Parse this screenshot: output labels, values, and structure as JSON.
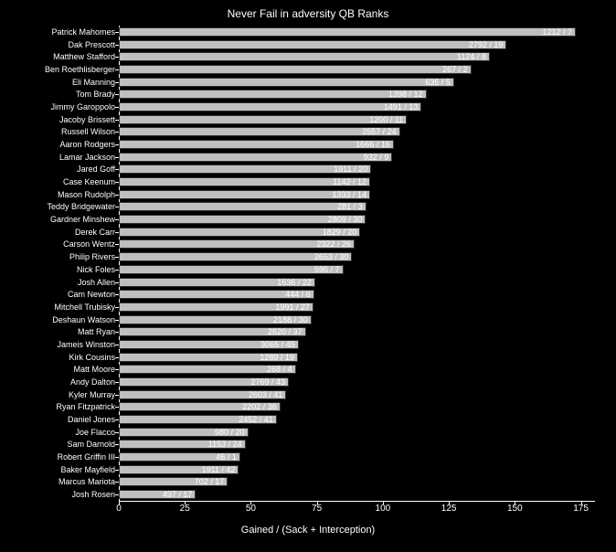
{
  "chart": {
    "type": "bar-horizontal",
    "title": "Never Fail in adversity QB Ranks",
    "title_fontsize": 12,
    "xlabel": "Gained / (Sack + Interception)",
    "label_fontsize": 11,
    "background_color": "#000000",
    "bar_color": "#bfbfbf",
    "bar_edge_color": "#303030",
    "text_color": "#ffffff",
    "tick_fontsize": 9,
    "xlim": [
      0,
      180
    ],
    "xtick_step": 25,
    "xticks": [
      0,
      25,
      50,
      75,
      100,
      125,
      150,
      175
    ],
    "players": [
      {
        "name": "Patrick Mahomes",
        "value": 173.1,
        "label": "1212 / 7"
      },
      {
        "name": "Dak Prescott",
        "value": 146.9,
        "label": "2792 / 19"
      },
      {
        "name": "Matthew Stafford",
        "value": 140.5,
        "label": "1124 / 8"
      },
      {
        "name": "Ben Roethlisberger",
        "value": 133.5,
        "label": "267 / 2"
      },
      {
        "name": "Eli Manning",
        "value": 127.0,
        "label": "635 / 5"
      },
      {
        "name": "Tom Brady",
        "value": 116.5,
        "label": "1398 / 12"
      },
      {
        "name": "Jimmy Garoppolo",
        "value": 114.7,
        "label": "1491 / 13"
      },
      {
        "name": "Jacoby Brissett",
        "value": 109.1,
        "label": "1200 / 11"
      },
      {
        "name": "Russell Wilson",
        "value": 106.5,
        "label": "2557 / 24"
      },
      {
        "name": "Aaron Rodgers",
        "value": 104.1,
        "label": "1666 / 16"
      },
      {
        "name": "Lamar Jackson",
        "value": 103.6,
        "label": "932 / 9"
      },
      {
        "name": "Jared Goff",
        "value": 95.6,
        "label": "1911 / 20"
      },
      {
        "name": "Case Keenum",
        "value": 95.2,
        "label": "1142 / 12"
      },
      {
        "name": "Mason Rudolph",
        "value": 95.2,
        "label": "1333 / 14"
      },
      {
        "name": "Teddy Bridgewater",
        "value": 93.7,
        "label": "281 / 3"
      },
      {
        "name": "Gardner Minshew",
        "value": 93.6,
        "label": "2809 / 30"
      },
      {
        "name": "Derek Carr",
        "value": 91.5,
        "label": "1829 / 20"
      },
      {
        "name": "Carson Wentz",
        "value": 89.3,
        "label": "2322 / 26"
      },
      {
        "name": "Philip Rivers",
        "value": 88.4,
        "label": "2653 / 30"
      },
      {
        "name": "Nick Foles",
        "value": 85.0,
        "label": "595 / 7"
      },
      {
        "name": "Josh Allen",
        "value": 74.4,
        "label": "1636 / 22"
      },
      {
        "name": "Cam Newton",
        "value": 74.0,
        "label": "444 / 6"
      },
      {
        "name": "Mitchell Trubisky",
        "value": 73.7,
        "label": "1991 / 27"
      },
      {
        "name": "Deshaun Watson",
        "value": 72.9,
        "label": "2188 / 30"
      },
      {
        "name": "Matt Ryan",
        "value": 70.8,
        "label": "2620 / 37"
      },
      {
        "name": "Jameis Winston",
        "value": 68.1,
        "label": "3065 / 45"
      },
      {
        "name": "Kirk Cousins",
        "value": 67.8,
        "label": "1289 / 19"
      },
      {
        "name": "Matt Moore",
        "value": 67.0,
        "label": "268 / 4"
      },
      {
        "name": "Andy Dalton",
        "value": 64.4,
        "label": "2769 / 43"
      },
      {
        "name": "Kyler Murray",
        "value": 63.5,
        "label": "2603 / 41"
      },
      {
        "name": "Ryan Fitzpatrick",
        "value": 61.2,
        "label": "2202 / 36"
      },
      {
        "name": "Daniel Jones",
        "value": 59.8,
        "label": "2452 / 41"
      },
      {
        "name": "Joe Flacco",
        "value": 49.0,
        "label": "980 / 20"
      },
      {
        "name": "Sam Darnold",
        "value": 48.0,
        "label": "1153 / 24"
      },
      {
        "name": "Robert Griffin III",
        "value": 46.0,
        "label": "46 / 1"
      },
      {
        "name": "Baker Mayfield",
        "value": 45.5,
        "label": "1911 / 42"
      },
      {
        "name": "Marcus Mariota",
        "value": 41.3,
        "label": "702 / 17"
      },
      {
        "name": "Josh Rosen",
        "value": 29.2,
        "label": "497 / 17"
      }
    ]
  }
}
